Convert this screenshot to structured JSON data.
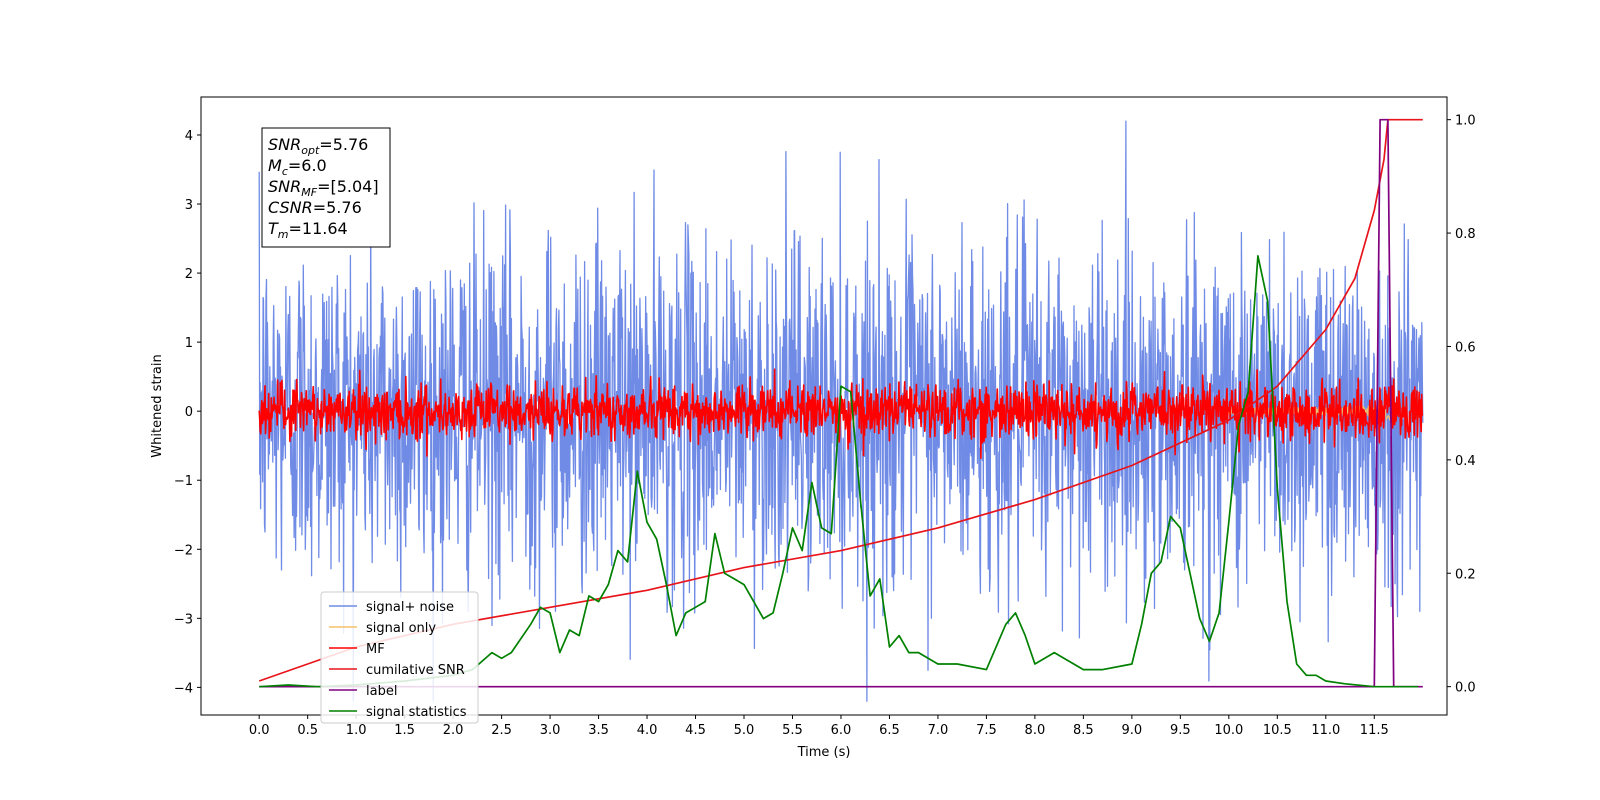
{
  "chart_data": {
    "type": "line",
    "xlabel": "Time (s)",
    "ylabel": "Whitened strain",
    "ylabel_right": "",
    "xlim": [
      -0.6,
      12.25
    ],
    "ylim": [
      -4.4,
      4.55
    ],
    "ylim_right": [
      -0.05,
      1.04
    ],
    "x_ticks": [
      "0.0",
      "0.5",
      "1.0",
      "1.5",
      "2.0",
      "2.5",
      "3.0",
      "3.5",
      "4.0",
      "4.5",
      "5.0",
      "5.5",
      "6.0",
      "6.5",
      "7.0",
      "7.5",
      "8.0",
      "8.5",
      "9.0",
      "9.5",
      "10.0",
      "10.5",
      "11.0",
      "11.5"
    ],
    "y_ticks": [
      "4",
      "3",
      "2",
      "1",
      "0",
      "−1",
      "−2",
      "−3",
      "−4"
    ],
    "y_ticks_right": [
      "1.0",
      "0.8",
      "0.6",
      "0.4",
      "0.2",
      "0.0"
    ],
    "legend_position": "lower-left",
    "legend": [
      {
        "label": "signal+ noise",
        "color": "#6f8be6"
      },
      {
        "label": "signal only",
        "color": "#f5c26b"
      },
      {
        "label": "MF",
        "color": "#ff0000"
      },
      {
        "label": "cumilative SNR",
        "color": "#e8141a"
      },
      {
        "label": "label",
        "color": "#800080"
      },
      {
        "label": "signal statistics",
        "color": "#008000"
      }
    ],
    "info_box": [
      {
        "sym": "SNR",
        "sub": "opt",
        "rest": "=5.76"
      },
      {
        "sym": "M",
        "sub": "c",
        "rest": "=6.0"
      },
      {
        "sym": "SNR",
        "sub": "MF",
        "rest": "=[5.04]"
      },
      {
        "sym": "CSNR",
        "sub": "",
        "rest": "=5.76"
      },
      {
        "sym": "T",
        "sub": "m",
        "rest": "=11.64"
      }
    ],
    "series": [
      {
        "name": "signal+ noise",
        "axis": "left",
        "style": "noise",
        "x_range": [
          0,
          12
        ],
        "amplitude_std": 1.25,
        "max_abs": 4.2
      },
      {
        "name": "signal only",
        "axis": "left",
        "style": "chirp",
        "x_range": [
          10.0,
          11.7
        ],
        "peak": 0.4
      },
      {
        "name": "MF",
        "axis": "left",
        "style": "noise",
        "x_range": [
          0,
          12
        ],
        "amplitude_std": 0.2,
        "max_abs": 1.0
      },
      {
        "name": "cumilative SNR",
        "axis": "right",
        "x": [
          0.0,
          1.0,
          2.0,
          3.0,
          4.0,
          5.0,
          6.0,
          7.0,
          8.0,
          9.0,
          10.0,
          10.5,
          11.0,
          11.3,
          11.5,
          11.6,
          11.64,
          12.0
        ],
        "y": [
          0.01,
          0.07,
          0.11,
          0.14,
          0.17,
          0.21,
          0.24,
          0.28,
          0.33,
          0.39,
          0.47,
          0.53,
          0.63,
          0.72,
          0.84,
          0.93,
          1.0,
          1.0
        ]
      },
      {
        "name": "label",
        "axis": "right",
        "x": [
          0.0,
          11.5,
          11.56,
          11.64,
          11.7,
          12.0
        ],
        "y": [
          0.0,
          0.0,
          1.0,
          1.0,
          0.0,
          0.0
        ]
      },
      {
        "name": "signal statistics",
        "axis": "right",
        "x": [
          0.0,
          0.3,
          0.6,
          1.0,
          1.5,
          2.0,
          2.2,
          2.4,
          2.5,
          2.6,
          2.8,
          2.9,
          3.0,
          3.1,
          3.2,
          3.3,
          3.4,
          3.5,
          3.6,
          3.7,
          3.8,
          3.9,
          4.0,
          4.1,
          4.2,
          4.3,
          4.4,
          4.5,
          4.6,
          4.7,
          4.8,
          4.9,
          5.0,
          5.1,
          5.2,
          5.3,
          5.4,
          5.5,
          5.6,
          5.7,
          5.8,
          5.9,
          6.0,
          6.1,
          6.2,
          6.3,
          6.4,
          6.5,
          6.6,
          6.7,
          6.8,
          7.0,
          7.2,
          7.5,
          7.7,
          7.8,
          7.9,
          8.0,
          8.2,
          8.5,
          8.7,
          9.0,
          9.1,
          9.2,
          9.3,
          9.4,
          9.5,
          9.6,
          9.7,
          9.8,
          9.9,
          10.0,
          10.1,
          10.2,
          10.3,
          10.4,
          10.5,
          10.6,
          10.7,
          10.8,
          10.9,
          11.0,
          11.2,
          11.5,
          11.7,
          11.95
        ],
        "y": [
          0.0,
          0.003,
          0.0,
          0.003,
          0.01,
          0.02,
          0.03,
          0.06,
          0.05,
          0.06,
          0.11,
          0.14,
          0.13,
          0.06,
          0.1,
          0.09,
          0.16,
          0.15,
          0.18,
          0.24,
          0.22,
          0.38,
          0.29,
          0.26,
          0.18,
          0.09,
          0.13,
          0.14,
          0.15,
          0.27,
          0.2,
          0.19,
          0.18,
          0.15,
          0.12,
          0.13,
          0.2,
          0.28,
          0.24,
          0.36,
          0.28,
          0.27,
          0.53,
          0.52,
          0.33,
          0.16,
          0.19,
          0.07,
          0.09,
          0.06,
          0.06,
          0.04,
          0.04,
          0.03,
          0.11,
          0.13,
          0.09,
          0.04,
          0.06,
          0.03,
          0.03,
          0.04,
          0.11,
          0.2,
          0.22,
          0.3,
          0.28,
          0.2,
          0.12,
          0.08,
          0.13,
          0.29,
          0.46,
          0.52,
          0.76,
          0.68,
          0.35,
          0.15,
          0.04,
          0.02,
          0.02,
          0.01,
          0.005,
          0.0,
          0.0,
          0.0
        ]
      }
    ]
  }
}
